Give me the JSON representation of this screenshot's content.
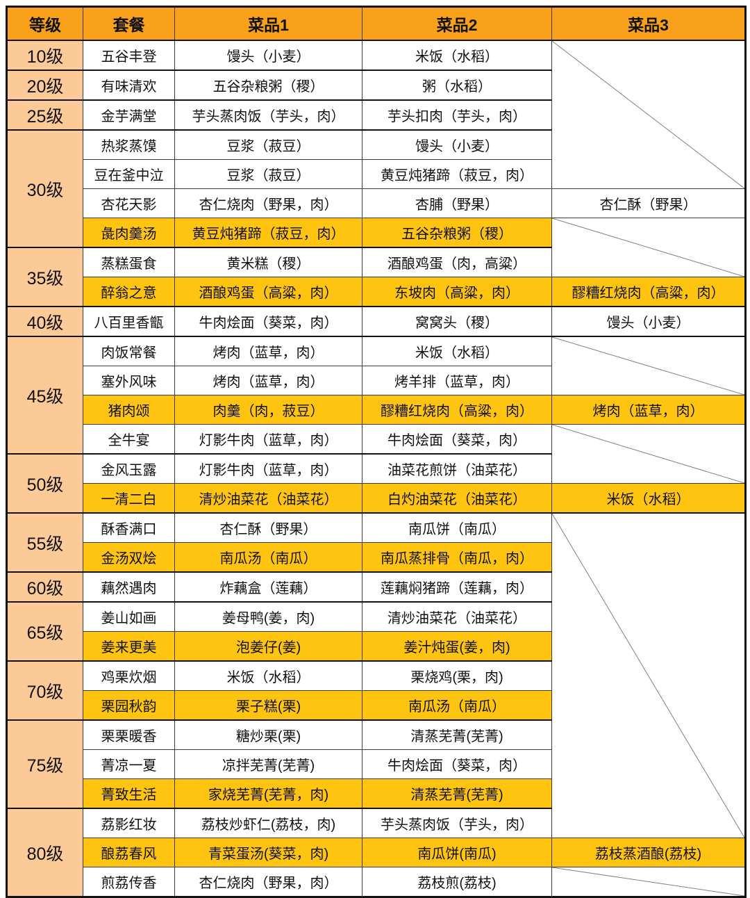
{
  "colors": {
    "header_bg": "#f9a11b",
    "level_bg": "#fbca97",
    "highlight_bg": "#ffc410",
    "grid": "#3a3a3a",
    "frame": "#111111",
    "diagonal": "#808080",
    "text": "#111111"
  },
  "chart_data": {
    "type": "table",
    "columns": [
      "等级",
      "套餐",
      "菜品1",
      "菜品2",
      "菜品3"
    ],
    "rows": [
      {
        "level": "10级",
        "level_span": 1,
        "set": "五谷丰登",
        "dish1": "馒头（小麦）",
        "dish2": "米饭（水稻）",
        "dish3": {
          "diag_span": 5
        },
        "highlight": false
      },
      {
        "level": "20级",
        "level_span": 1,
        "set": "有味清欢",
        "dish1": "五谷杂粮粥（稷）",
        "dish2": "粥（水稻）",
        "dish3": null,
        "highlight": false
      },
      {
        "level": "25级",
        "level_span": 1,
        "set": "金芋满堂",
        "dish1": "芋头蒸肉饭（芋头，肉）",
        "dish2": "芋头扣肉（芋头，肉）",
        "dish3": null,
        "highlight": false
      },
      {
        "level": "30级",
        "level_span": 4,
        "set": "热浆蒸馍",
        "dish1": "豆浆（菽豆）",
        "dish2": "馒头（小麦）",
        "dish3": null,
        "highlight": false
      },
      {
        "set": "豆在釜中泣",
        "dish1": "豆浆（菽豆）",
        "dish2": "黄豆炖猪蹄（菽豆，肉）",
        "dish3": null,
        "highlight": false
      },
      {
        "set": "杏花天影",
        "dish1": "杏仁烧肉（野果，肉）",
        "dish2": "杏脯（野果）",
        "dish3": {
          "text": "杏仁酥（野果）",
          "highlight": false
        },
        "highlight": false
      },
      {
        "set": "彘肉羹汤",
        "dish1": "黄豆炖猪蹄（菽豆，肉）",
        "dish2": "五谷杂粮粥（稷）",
        "dish3": {
          "diag_span": 2
        },
        "highlight": true
      },
      {
        "level": "35级",
        "level_span": 2,
        "set": "蒸糕蛋食",
        "dish1": "黄米糕（稷）",
        "dish2": "酒酿鸡蛋（肉，高粱）",
        "dish3": null,
        "highlight": false
      },
      {
        "set": "醉翁之意",
        "dish1": "酒酿鸡蛋（高粱，肉）",
        "dish2": "东坡肉（高粱，肉）",
        "dish3": {
          "text": "醪糟红烧肉（高粱，肉）",
          "highlight": true
        },
        "highlight": true
      },
      {
        "level": "40级",
        "level_span": 1,
        "set": "八百里香甑",
        "dish1": "牛肉烩面（葵菜，肉）",
        "dish2": "窝窝头（稷）",
        "dish3": {
          "text": "馒头（小麦）",
          "highlight": false
        },
        "highlight": false
      },
      {
        "level": "45级",
        "level_span": 4,
        "set": "肉饭常餐",
        "dish1": "烤肉（蓝草，肉）",
        "dish2": "米饭（水稻）",
        "dish3": {
          "diag_span": 2
        },
        "highlight": false
      },
      {
        "set": "塞外风味",
        "dish1": "烤肉（蓝草，肉）",
        "dish2": "烤羊排（蓝草，肉）",
        "dish3": null,
        "highlight": false
      },
      {
        "set": "猪肉颂",
        "dish1": "肉羹（肉，菽豆）",
        "dish2": "醪糟红烧肉（高粱，肉）",
        "dish3": {
          "text": "烤肉（蓝草，肉）",
          "highlight": true
        },
        "highlight": true
      },
      {
        "set": "全牛宴",
        "dish1": "灯影牛肉（蓝草，肉）",
        "dish2": "牛肉烩面（葵菜，肉）",
        "dish3": {
          "diag_span": 2
        },
        "highlight": false
      },
      {
        "level": "50级",
        "level_span": 2,
        "set": "金风玉露",
        "dish1": "灯影牛肉（蓝草，肉）",
        "dish2": "油菜花煎饼（油菜花）",
        "dish3": null,
        "highlight": false
      },
      {
        "set": "一清二白",
        "dish1": "清炒油菜花（油菜花）",
        "dish2": "白灼油菜花（油菜花）",
        "dish3": {
          "text": "米饭（水稻）",
          "highlight": true
        },
        "highlight": true
      },
      {
        "level": "55级",
        "level_span": 2,
        "set": "酥香满口",
        "dish1": "杏仁酥（野果）",
        "dish2": "南瓜饼（南瓜）",
        "dish3": {
          "diag_span": 11
        },
        "highlight": false
      },
      {
        "set": "金汤双烩",
        "dish1": "南瓜汤（南瓜）",
        "dish2": "南瓜蒸排骨（南瓜，肉）",
        "dish3": null,
        "highlight": true
      },
      {
        "level": "60级",
        "level_span": 1,
        "set": "藕然遇肉",
        "dish1": "炸藕盒（莲藕）",
        "dish2": "莲藕焖猪蹄（莲藕，肉）",
        "dish3": null,
        "highlight": false
      },
      {
        "level": "65级",
        "level_span": 2,
        "set": "姜山如画",
        "dish1": "姜母鸭(姜，肉)",
        "dish2": "清炒油菜花（油菜花）",
        "dish3": null,
        "highlight": false
      },
      {
        "set": "姜来更美",
        "dish1": "泡姜仔(姜)",
        "dish2": "姜汁炖蛋(姜，肉)",
        "dish3": null,
        "highlight": true
      },
      {
        "level": "70级",
        "level_span": 2,
        "set": "鸡栗炊烟",
        "dish1": "米饭（水稻）",
        "dish2": "栗烧鸡(栗，肉)",
        "dish3": null,
        "highlight": false
      },
      {
        "set": "栗园秋韵",
        "dish1": "栗子糕(栗)",
        "dish2": "南瓜汤（南瓜）",
        "dish3": null,
        "highlight": true
      },
      {
        "level": "75级",
        "level_span": 3,
        "set": "栗栗暖香",
        "dish1": "糖炒栗(栗)",
        "dish2": "清蒸芜菁(芜菁)",
        "dish3": null,
        "highlight": false
      },
      {
        "set": "菁凉一夏",
        "dish1": "凉拌芜菁(芜菁)",
        "dish2": "牛肉烩面（葵菜，肉）",
        "dish3": null,
        "highlight": false
      },
      {
        "set": "菁致生活",
        "dish1": "家烧芜菁(芜菁，肉)",
        "dish2": "清蒸芜菁(芜菁)",
        "dish3": null,
        "highlight": true
      },
      {
        "level": "80级",
        "level_span": 3,
        "set": "荔影红妆",
        "dish1": "荔枝炒虾仁(荔枝，肉)",
        "dish2": "芋头蒸肉饭（芋头，肉）",
        "dish3": null,
        "highlight": false
      },
      {
        "set": "酿荔春风",
        "dish1": "青菜蛋汤(葵菜，肉)",
        "dish2": "南瓜饼(南瓜)",
        "dish3": {
          "text": "荔枝蒸酒酿(荔枝)",
          "highlight": true
        },
        "highlight": true
      },
      {
        "set": "煎荔传香",
        "dish1": "杏仁烧肉（野果，肉）",
        "dish2": "荔枝煎(荔枝)",
        "dish3": {
          "diag_span": 1
        },
        "highlight": false
      }
    ]
  }
}
